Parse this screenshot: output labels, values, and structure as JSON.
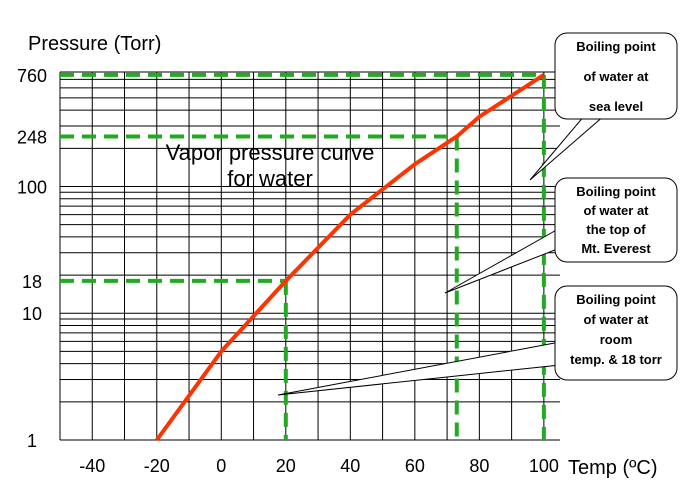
{
  "chart_data": {
    "type": "line",
    "title": "Vapor pressure curve for water",
    "ylabel": "Pressure (Torr)",
    "xlabel": "Temp (ºC)",
    "yscale": "log",
    "xlim": [
      -50,
      105
    ],
    "ylim": [
      1,
      800
    ],
    "grid": true,
    "x_ticks": [
      -40,
      -20,
      0,
      20,
      40,
      60,
      80,
      100
    ],
    "y_ticks": [
      1,
      10,
      18,
      100,
      248,
      760
    ],
    "series": [
      {
        "color": "#ff3300",
        "x": [
          -20,
          0,
          20,
          40,
          60,
          73,
          80,
          100
        ],
        "y": [
          1,
          5,
          18,
          60,
          150,
          248,
          355,
          760
        ]
      }
    ],
    "reference_lines": {
      "color": "#22aa22",
      "points": [
        {
          "x": 20,
          "y": 18
        },
        {
          "x": 73,
          "y": 248
        },
        {
          "x": 100,
          "y": 760
        }
      ]
    },
    "annotations": [
      {
        "text": "Boiling point of water at sea level",
        "lines": [
          "Boiling point",
          "of water at",
          "sea level"
        ],
        "x": 100,
        "y": 400
      },
      {
        "text": "Boiling point of water at the top of Mt. Everest",
        "lines": [
          "Boiling point",
          "of water at",
          "the top of",
          "Mt. Everest"
        ],
        "x": 73,
        "y": 12
      },
      {
        "text": "Boiling point of water at room temp. & 18 torr",
        "lines": [
          "Boiling point",
          "of water at",
          "room",
          "temp. & 18 torr"
        ],
        "x": 20,
        "y": 2.5
      }
    ]
  }
}
